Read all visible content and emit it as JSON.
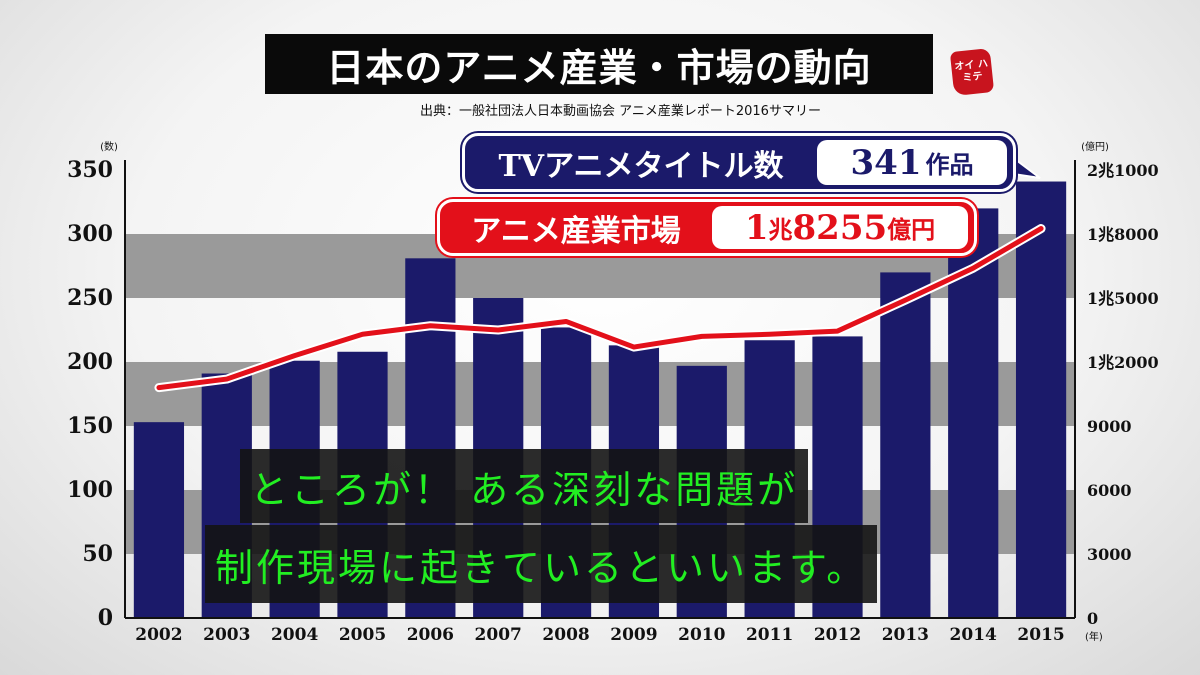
{
  "header": {
    "title": "日本のアニメ産業・市場の動向",
    "source": "出典：一般社団法人日本動画協会 アニメ産業レポート2016サマリー",
    "logo_text": "オイ ハミテ"
  },
  "callouts": {
    "tv": {
      "label": "TVアニメタイトル数",
      "value": "341",
      "unit": "作品"
    },
    "market": {
      "label": "アニメ産業市場",
      "value_a": "1",
      "unit_a": "兆",
      "value_b": "8255",
      "unit_b": "億円"
    }
  },
  "subtitles": {
    "line1": "ところが！ ある深刻な問題が",
    "line2": "制作現場に起きているといいます。"
  },
  "colors": {
    "bar": "#1b1a6a",
    "line": "#e3101a",
    "band": "#9a9a9a",
    "subtitle": "#22ee22"
  },
  "chart_data": {
    "type": "bar+line",
    "categories": [
      "2002",
      "2003",
      "2004",
      "2005",
      "2006",
      "2007",
      "2008",
      "2009",
      "2010",
      "2011",
      "2012",
      "2013",
      "2014",
      "2015"
    ],
    "x_unit": "(年)",
    "series": [
      {
        "name": "TVアニメタイトル数",
        "type": "bar",
        "axis": "left",
        "values": [
          153,
          191,
          201,
          208,
          281,
          250,
          227,
          213,
          197,
          217,
          220,
          270,
          320,
          341
        ]
      },
      {
        "name": "アニメ産業市場",
        "type": "line",
        "axis": "right",
        "values": [
          10800,
          11200,
          12300,
          13300,
          13700,
          13500,
          13900,
          12700,
          13200,
          13300,
          13450,
          14900,
          16400,
          18255
        ]
      }
    ],
    "left_axis": {
      "unit": "(数)",
      "range": [
        0,
        350
      ],
      "ticks": [
        0,
        50,
        100,
        150,
        200,
        250,
        300,
        350
      ],
      "tick_labels": [
        "0",
        "50",
        "100",
        "150",
        "200",
        "250",
        "300",
        "350"
      ]
    },
    "right_axis": {
      "unit": "(億円)",
      "range": [
        0,
        21000
      ],
      "ticks": [
        0,
        3000,
        6000,
        9000,
        12000,
        15000,
        18000,
        21000
      ],
      "tick_labels": [
        "0",
        "3000",
        "6000",
        "9000",
        "1兆2000",
        "1兆5000",
        "1兆8000",
        "2兆1000"
      ]
    }
  }
}
